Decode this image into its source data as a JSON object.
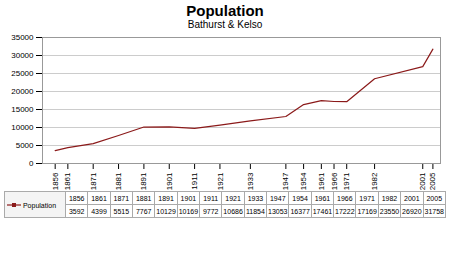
{
  "chart_data": {
    "type": "line",
    "title": "Population",
    "subtitle": "Bathurst & Kelso",
    "x": [
      1856,
      1861,
      1871,
      1881,
      1891,
      1901,
      1911,
      1921,
      1933,
      1947,
      1954,
      1961,
      1966,
      1971,
      1982,
      2001,
      2005
    ],
    "series": [
      {
        "name": "Population",
        "color": "#8B1A1A",
        "values": [
          3592,
          4399,
          5515,
          7767,
          10129,
          10169,
          9772,
          10686,
          11854,
          13053,
          16377,
          17461,
          17222,
          17169,
          23550,
          26920,
          31758
        ]
      }
    ],
    "xlim": [
      1851,
      2008
    ],
    "xticks": [
      1856,
      1861,
      1871,
      1881,
      1891,
      1901,
      1911,
      1921,
      1933,
      1947,
      1954,
      1961,
      1966,
      1971,
      1982,
      2001,
      2005
    ],
    "ylim": [
      0,
      35000
    ],
    "yticks": [
      0,
      5000,
      10000,
      15000,
      20000,
      25000,
      30000,
      35000
    ],
    "grid": true,
    "legend": "lower left",
    "data_labels": true
  }
}
